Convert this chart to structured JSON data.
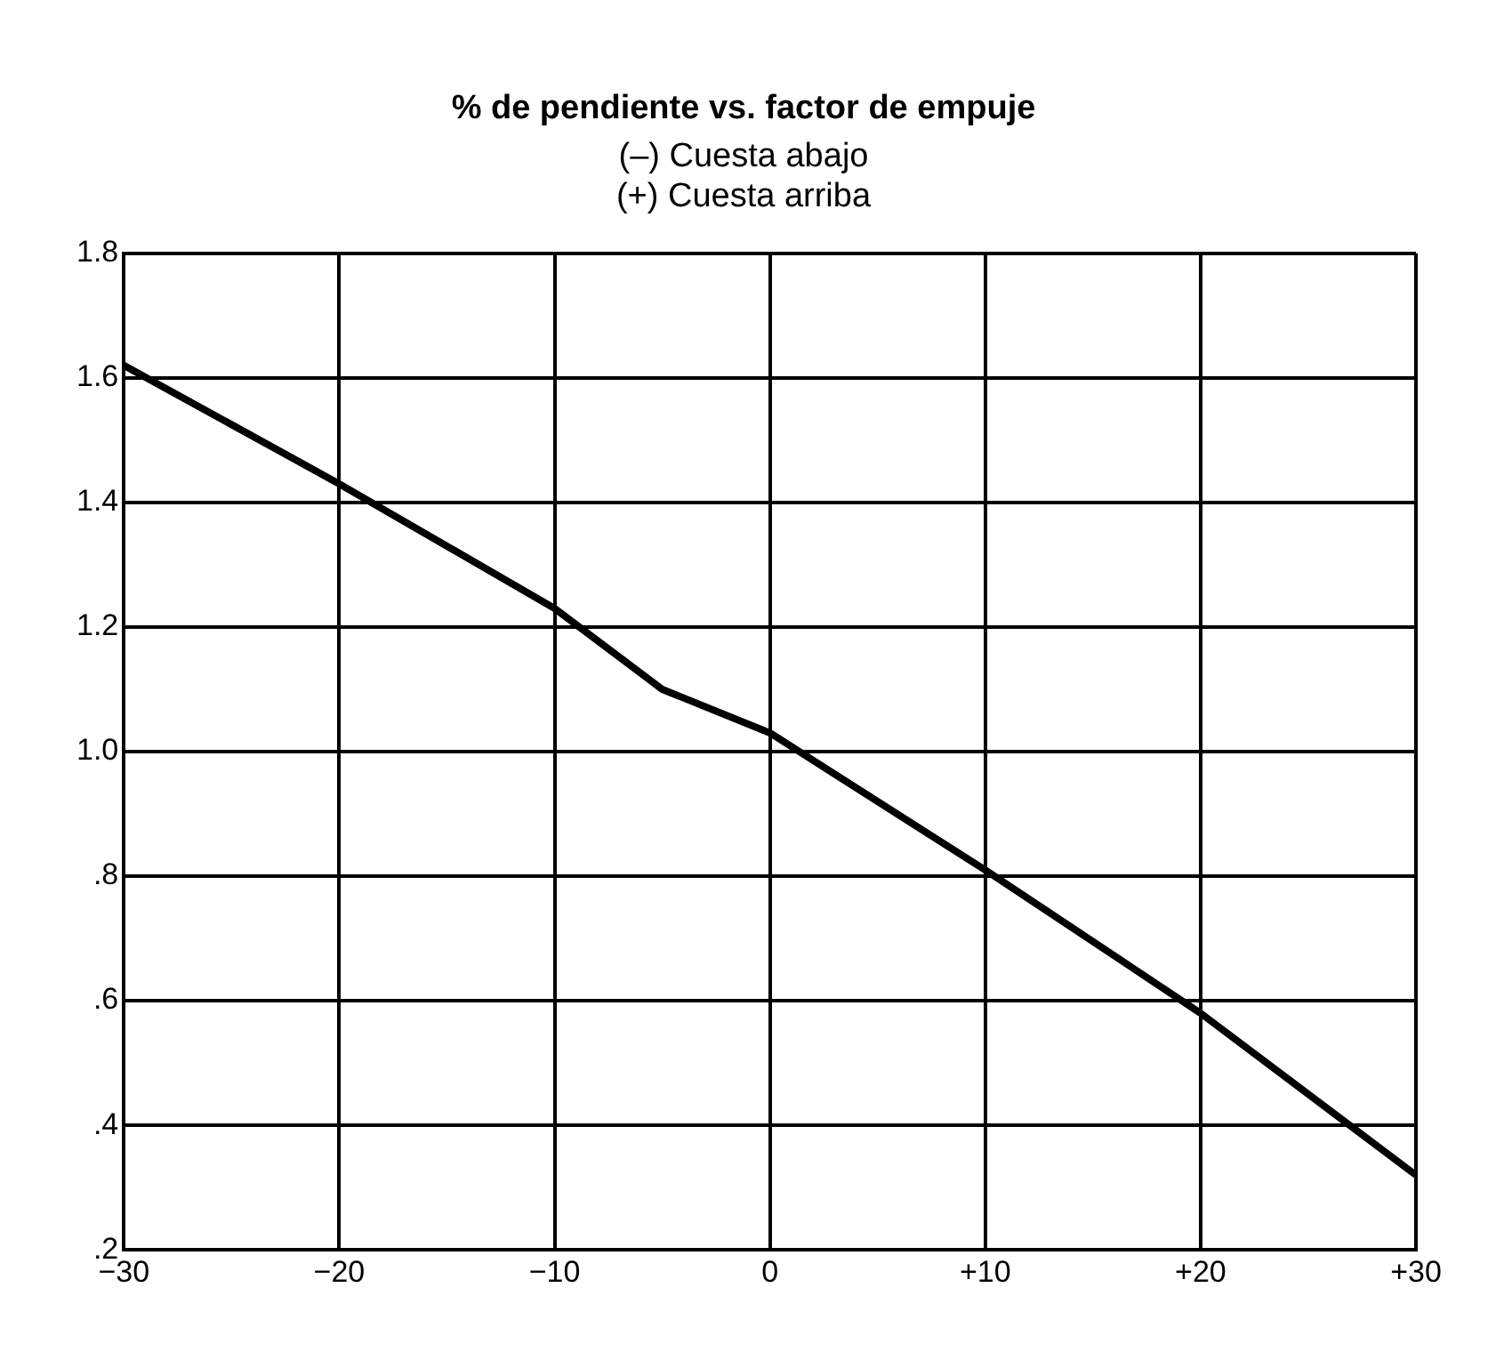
{
  "chart_data": {
    "type": "line",
    "title": "% de pendiente vs. factor de empuje",
    "subtitle": "(–) Cuesta abajo\n(+) Cuesta arriba",
    "x": [
      -30,
      -20,
      -10,
      -5,
      0,
      10,
      20,
      30
    ],
    "series": [
      {
        "color": "#000000",
        "values": [
          1.62,
          1.43,
          1.23,
          1.1,
          1.03,
          0.81,
          0.58,
          0.32
        ]
      }
    ],
    "xlim": [
      -30,
      30
    ],
    "xticks": [
      {
        "value": -30,
        "label": "−30"
      },
      {
        "value": -20,
        "label": "−20"
      },
      {
        "value": -10,
        "label": "−10"
      },
      0,
      {
        "value": 10,
        "label": "+10"
      },
      {
        "value": 20,
        "label": "+20"
      },
      {
        "value": 30,
        "label": "+30"
      }
    ],
    "ylim": [
      0.2,
      1.8
    ],
    "yticks": [
      {
        "value": 0.2,
        "label": ".2"
      },
      {
        "value": 0.4,
        "label": ".4"
      },
      {
        "value": 0.6,
        "label": ".6"
      },
      {
        "value": 0.8,
        "label": ".8"
      },
      {
        "value": 1.0,
        "label": "1.0"
      },
      {
        "value": 1.2,
        "label": "1.2"
      },
      {
        "value": 1.4,
        "label": "1.4"
      },
      {
        "value": 1.6,
        "label": "1.6"
      },
      {
        "value": 1.8,
        "label": "1.8"
      }
    ],
    "grid": true,
    "legend": false,
    "marker": "none",
    "line_style": "solid"
  }
}
